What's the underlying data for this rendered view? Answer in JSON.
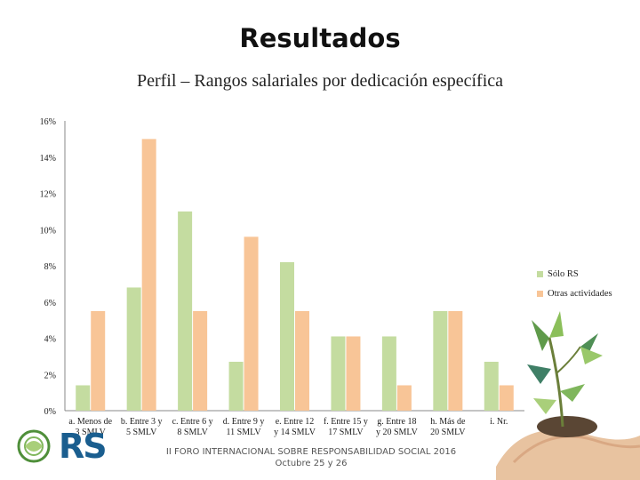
{
  "slide": {
    "title": "Resultados",
    "subtitle": "Perfil – Rangos salariales por dedicación específica"
  },
  "footer": {
    "event": "II FORO INTERNACIONAL SOBRE RESPONSABILIDAD SOCIAL 2016",
    "date": "Octubre 25 y 26",
    "logo_text": "RS"
  },
  "colors": {
    "series_1": "#c4dca0",
    "series_2": "#f8c597",
    "text": "#222222",
    "logo": "#1a5e8f"
  },
  "chart_data": {
    "type": "bar",
    "title": "",
    "xlabel": "",
    "ylabel": "",
    "ylim": [
      0,
      16
    ],
    "y_ticks": [
      "0%",
      "2%",
      "4%",
      "6%",
      "8%",
      "10%",
      "12%",
      "14%",
      "16%"
    ],
    "grid": false,
    "legend_position": "right",
    "categories": [
      [
        "a. Menos de",
        "3 SMLV"
      ],
      [
        "b. Entre 3 y",
        "5 SMLV"
      ],
      [
        "c. Entre 6 y",
        "8 SMLV"
      ],
      [
        "d. Entre 9 y",
        "11 SMLV"
      ],
      [
        "e. Entre 12",
        "y 14 SMLV"
      ],
      [
        "f. Entre 15 y",
        "17 SMLV"
      ],
      [
        "g. Entre 18",
        "y 20 SMLV"
      ],
      [
        "h. Más de",
        "20 SMLV"
      ],
      [
        "i. Nr.",
        ""
      ]
    ],
    "series": [
      {
        "name": "Sólo RS",
        "values": [
          1.4,
          6.8,
          11.0,
          2.7,
          8.2,
          4.1,
          4.1,
          5.5,
          2.7
        ]
      },
      {
        "name": "Otras actividades",
        "values": [
          5.5,
          15.0,
          5.5,
          9.6,
          5.5,
          4.1,
          1.4,
          5.5,
          1.4
        ]
      }
    ]
  }
}
